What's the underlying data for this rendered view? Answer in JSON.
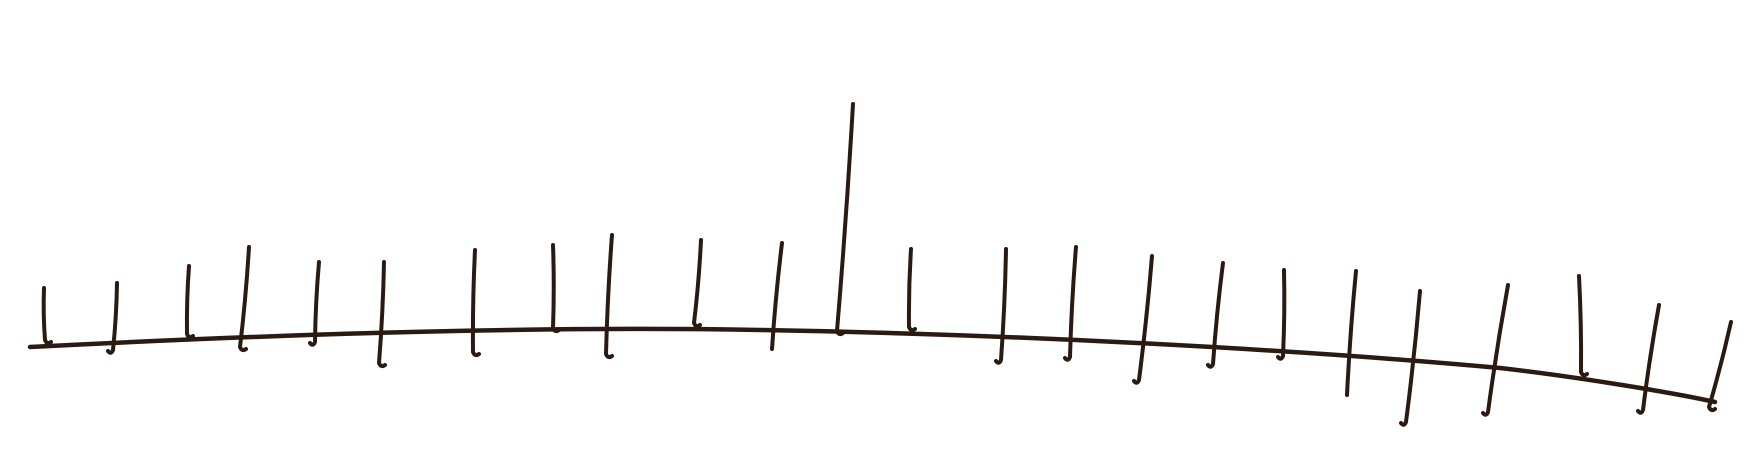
{
  "drawing": {
    "subject": "hand-drawn-ruler-sketch",
    "ink_color": "#2a1a12",
    "background_color": "#ffffff",
    "tick_count": 24,
    "tallest_tick_index": 11
  }
}
